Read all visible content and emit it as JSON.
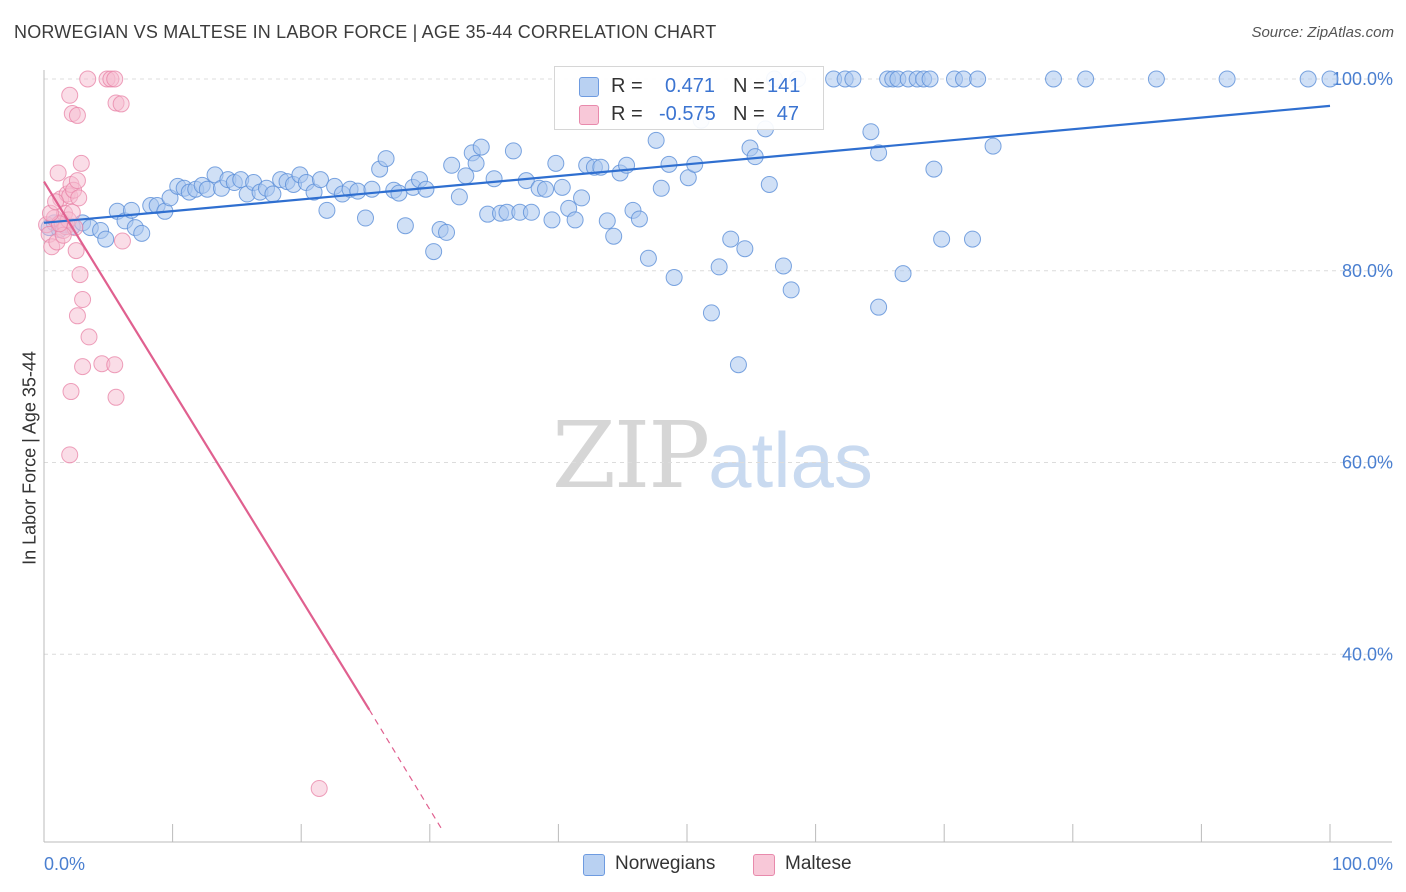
{
  "title": "NORWEGIAN VS MALTESE IN LABOR FORCE | AGE 35-44 CORRELATION CHART",
  "source": "Source: ZipAtlas.com",
  "watermark": {
    "zip": "ZIP",
    "atlas": "atlas"
  },
  "legend": {
    "rows": [
      {
        "r_label": "R =",
        "r_value": "0.471",
        "n_label": "N =",
        "n_value": "141"
      },
      {
        "r_label": "R =",
        "r_value": "-0.575",
        "n_label": "N =",
        "n_value": "47"
      }
    ]
  },
  "bottom_legend": [
    "Norwegians",
    "Maltese"
  ],
  "colors": {
    "norwegian_fill": "#a9c6ee",
    "norwegian_stroke": "#5b8fd8",
    "norwegian_line": "#2f6fd0",
    "maltese_fill": "#f6bccf",
    "maltese_stroke": "#e882a6",
    "maltese_line": "#e0608f",
    "tick_label": "#4a7fd0",
    "grid": "#dcdcdc"
  },
  "chart_data": {
    "type": "scatter",
    "title": "NORWEGIAN VS MALTESE IN LABOR FORCE | AGE 35-44 CORRELATION CHART",
    "xlabel": "",
    "ylabel": "In Labor Force | Age 35-44",
    "xlim": [
      0,
      100
    ],
    "ylim": [
      20,
      102
    ],
    "x_tick_labels": [
      "0.0%",
      "100.0%"
    ],
    "y_ticks": [
      40,
      60,
      80,
      100
    ],
    "y_tick_labels": [
      "40.0%",
      "60.0%",
      "80.0%",
      "100.0%"
    ],
    "grid": true,
    "legend_position": "top-center",
    "series": [
      {
        "name": "Norwegians",
        "r": 0.471,
        "n": 141,
        "trend": {
          "x": [
            0,
            100
          ],
          "y": [
            85.0,
            97.2
          ]
        },
        "points": [
          [
            0.4,
            84.5
          ],
          [
            0.8,
            85.0
          ],
          [
            1.2,
            84.3
          ],
          [
            1.6,
            84.8
          ],
          [
            2.2,
            84.6
          ],
          [
            3.0,
            85.0
          ],
          [
            3.6,
            84.5
          ],
          [
            4.4,
            84.2
          ],
          [
            4.8,
            83.3
          ],
          [
            5.7,
            86.2
          ],
          [
            6.3,
            85.2
          ],
          [
            6.8,
            86.3
          ],
          [
            7.1,
            84.5
          ],
          [
            7.6,
            83.9
          ],
          [
            8.3,
            86.8
          ],
          [
            8.8,
            86.8
          ],
          [
            9.4,
            86.2
          ],
          [
            9.8,
            87.6
          ],
          [
            10.4,
            88.8
          ],
          [
            10.9,
            88.6
          ],
          [
            11.3,
            88.2
          ],
          [
            11.8,
            88.5
          ],
          [
            12.3,
            88.9
          ],
          [
            12.7,
            88.5
          ],
          [
            13.3,
            90.0
          ],
          [
            13.8,
            88.6
          ],
          [
            14.3,
            89.5
          ],
          [
            14.8,
            89.2
          ],
          [
            15.3,
            89.5
          ],
          [
            15.8,
            88.0
          ],
          [
            16.3,
            89.2
          ],
          [
            16.8,
            88.2
          ],
          [
            17.3,
            88.6
          ],
          [
            17.8,
            88.0
          ],
          [
            18.4,
            89.5
          ],
          [
            18.9,
            89.3
          ],
          [
            19.4,
            89.0
          ],
          [
            19.9,
            90.0
          ],
          [
            20.4,
            89.2
          ],
          [
            21.0,
            88.2
          ],
          [
            21.5,
            89.5
          ],
          [
            22.0,
            86.3
          ],
          [
            22.6,
            88.8
          ],
          [
            23.2,
            88.0
          ],
          [
            23.8,
            88.5
          ],
          [
            24.4,
            88.3
          ],
          [
            25.0,
            85.5
          ],
          [
            25.5,
            88.5
          ],
          [
            26.1,
            90.6
          ],
          [
            26.6,
            91.7
          ],
          [
            27.2,
            88.4
          ],
          [
            27.6,
            88.1
          ],
          [
            28.1,
            84.7
          ],
          [
            28.7,
            88.7
          ],
          [
            29.2,
            89.5
          ],
          [
            29.7,
            88.5
          ],
          [
            30.3,
            82.0
          ],
          [
            30.8,
            84.3
          ],
          [
            31.3,
            84.0
          ],
          [
            31.7,
            91.0
          ],
          [
            32.3,
            87.7
          ],
          [
            32.8,
            89.9
          ],
          [
            33.3,
            92.3
          ],
          [
            33.6,
            91.2
          ],
          [
            34.0,
            92.9
          ],
          [
            34.5,
            85.9
          ],
          [
            35.0,
            89.6
          ],
          [
            35.5,
            86.0
          ],
          [
            36.0,
            86.1
          ],
          [
            36.5,
            92.5
          ],
          [
            37.0,
            86.1
          ],
          [
            37.5,
            89.4
          ],
          [
            37.9,
            86.1
          ],
          [
            38.5,
            88.6
          ],
          [
            39.0,
            88.5
          ],
          [
            39.5,
            85.3
          ],
          [
            39.8,
            91.2
          ],
          [
            40.3,
            88.7
          ],
          [
            40.8,
            86.5
          ],
          [
            41.3,
            85.3
          ],
          [
            41.8,
            87.6
          ],
          [
            42.2,
            91.0
          ],
          [
            42.8,
            90.8
          ],
          [
            43.3,
            90.8
          ],
          [
            43.8,
            85.2
          ],
          [
            44.3,
            83.6
          ],
          [
            44.8,
            90.2
          ],
          [
            45.3,
            91.0
          ],
          [
            45.8,
            86.3
          ],
          [
            46.3,
            85.4
          ],
          [
            47.0,
            81.3
          ],
          [
            47.6,
            93.6
          ],
          [
            48.0,
            88.6
          ],
          [
            48.6,
            91.1
          ],
          [
            49.0,
            79.3
          ],
          [
            50.1,
            89.7
          ],
          [
            50.6,
            91.1
          ],
          [
            51.1,
            95.7
          ],
          [
            51.9,
            75.6
          ],
          [
            52.5,
            80.4
          ],
          [
            53.4,
            83.3
          ],
          [
            54.0,
            70.2
          ],
          [
            54.5,
            82.3
          ],
          [
            54.9,
            92.8
          ],
          [
            55.3,
            91.9
          ],
          [
            56.1,
            94.8
          ],
          [
            56.4,
            89.0
          ],
          [
            56.8,
            100
          ],
          [
            57.5,
            80.5
          ],
          [
            58.1,
            78.0
          ],
          [
            58.6,
            100
          ],
          [
            61.4,
            100
          ],
          [
            62.3,
            100
          ],
          [
            62.9,
            100
          ],
          [
            64.3,
            94.5
          ],
          [
            64.9,
            92.3
          ],
          [
            64.9,
            76.2
          ],
          [
            65.6,
            100
          ],
          [
            66.0,
            100
          ],
          [
            66.4,
            100
          ],
          [
            66.8,
            79.7
          ],
          [
            67.2,
            100
          ],
          [
            67.9,
            100
          ],
          [
            68.4,
            100
          ],
          [
            68.9,
            100
          ],
          [
            69.2,
            90.6
          ],
          [
            69.8,
            83.3
          ],
          [
            70.8,
            100
          ],
          [
            71.5,
            100
          ],
          [
            72.2,
            83.3
          ],
          [
            72.6,
            100
          ],
          [
            73.8,
            93.0
          ],
          [
            78.5,
            100
          ],
          [
            81.0,
            100
          ],
          [
            86.5,
            100
          ],
          [
            92.0,
            100
          ],
          [
            98.3,
            100
          ],
          [
            100.0,
            100
          ]
        ]
      },
      {
        "name": "Maltese",
        "r": -0.575,
        "n": 47,
        "trend": {
          "x": [
            0,
            25.3
          ],
          "y": [
            89.3,
            34.2
          ],
          "dashed_extension": {
            "x": [
              25.3,
              31.0
            ],
            "y": [
              34.2,
              21.6
            ]
          }
        },
        "points": [
          [
            0.2,
            84.8
          ],
          [
            0.4,
            83.8
          ],
          [
            0.6,
            82.5
          ],
          [
            0.8,
            85.5
          ],
          [
            1.0,
            83.0
          ],
          [
            1.1,
            90.2
          ],
          [
            1.3,
            87.5
          ],
          [
            1.4,
            85.1
          ],
          [
            1.5,
            84.2
          ],
          [
            1.6,
            86.0
          ],
          [
            1.7,
            84.6
          ],
          [
            1.8,
            88.0
          ],
          [
            1.9,
            85.3
          ],
          [
            2.0,
            87.8
          ],
          [
            2.1,
            89.0
          ],
          [
            2.2,
            86.1
          ],
          [
            2.3,
            88.4
          ],
          [
            2.4,
            84.5
          ],
          [
            2.5,
            82.1
          ],
          [
            2.6,
            89.4
          ],
          [
            2.7,
            87.6
          ],
          [
            2.9,
            91.2
          ],
          [
            2.8,
            79.6
          ],
          [
            3.0,
            77.0
          ],
          [
            2.6,
            75.3
          ],
          [
            2.1,
            67.4
          ],
          [
            2.0,
            60.8
          ],
          [
            2.0,
            98.3
          ],
          [
            2.2,
            96.4
          ],
          [
            2.6,
            96.2
          ],
          [
            3.5,
            73.1
          ],
          [
            3.0,
            70.0
          ],
          [
            4.5,
            70.3
          ],
          [
            5.5,
            70.2
          ],
          [
            5.6,
            66.8
          ],
          [
            5.6,
            97.5
          ],
          [
            6.0,
            97.4
          ],
          [
            4.9,
            100
          ],
          [
            5.2,
            100
          ],
          [
            5.5,
            100
          ],
          [
            3.4,
            100
          ],
          [
            1.5,
            83.7
          ],
          [
            1.2,
            84.9
          ],
          [
            0.5,
            86.0
          ],
          [
            0.9,
            87.2
          ],
          [
            6.1,
            83.1
          ],
          [
            21.4,
            26.0
          ]
        ]
      }
    ]
  }
}
